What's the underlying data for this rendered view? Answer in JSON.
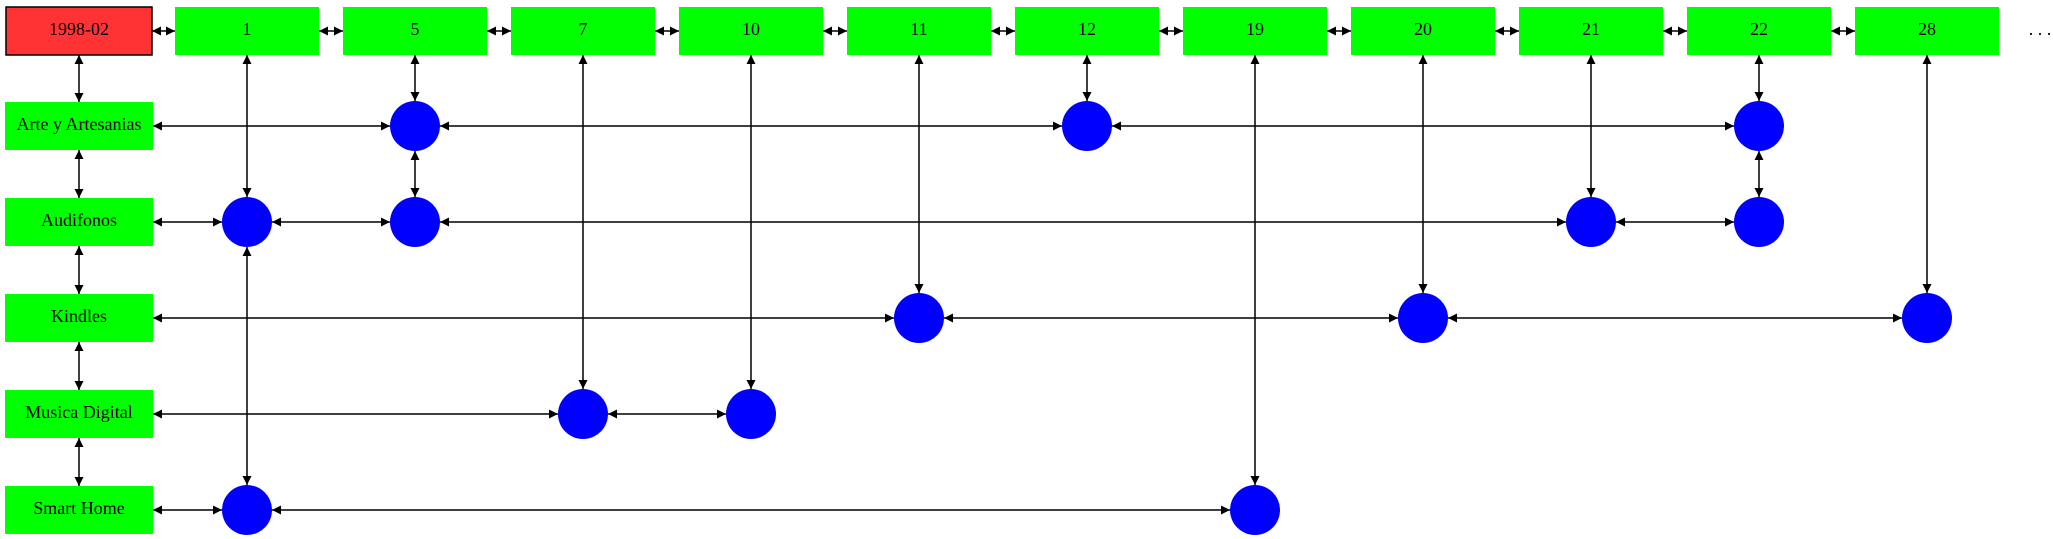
{
  "root": {
    "label": "1998-02",
    "color": "#ff3333"
  },
  "columns": [
    "1",
    "5",
    "7",
    "10",
    "11",
    "12",
    "19",
    "20",
    "21",
    "22",
    "28"
  ],
  "rows": [
    "Arte y Artesanias",
    "Audifonos",
    "Kindles",
    "Musica Digital",
    "Smart Home"
  ],
  "colors": {
    "header": "#00ff00",
    "row": "#00ff00",
    "node": "#0000ff",
    "edge": "#000000"
  },
  "ellipsis": ". . .",
  "nodes": [
    {
      "row": 0,
      "col": "5"
    },
    {
      "row": 0,
      "col": "12"
    },
    {
      "row": 0,
      "col": "22"
    },
    {
      "row": 1,
      "col": "1"
    },
    {
      "row": 1,
      "col": "5"
    },
    {
      "row": 1,
      "col": "21"
    },
    {
      "row": 1,
      "col": "22"
    },
    {
      "row": 2,
      "col": "11"
    },
    {
      "row": 2,
      "col": "20"
    },
    {
      "row": 2,
      "col": "28"
    },
    {
      "row": 3,
      "col": "7"
    },
    {
      "row": 3,
      "col": "10"
    },
    {
      "row": 4,
      "col": "1"
    },
    {
      "row": 4,
      "col": "19"
    }
  ]
}
